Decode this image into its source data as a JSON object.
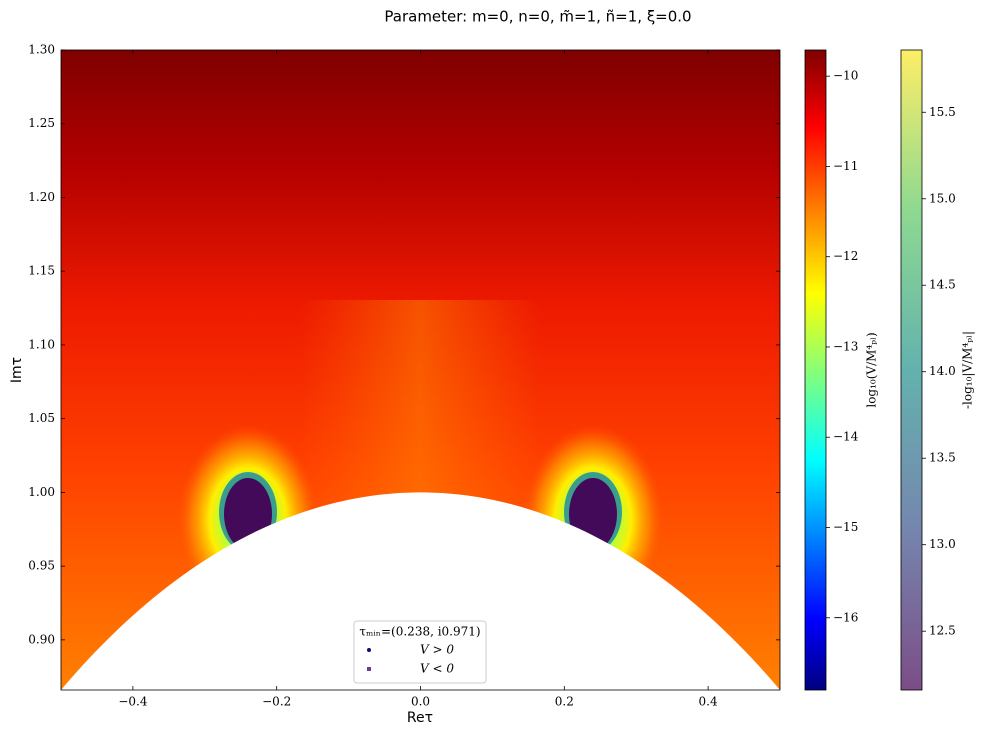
{
  "chart_data": {
    "type": "heatmap",
    "title": "Parameter: m=0, n=0, m̃=1, ñ=1, ξ=0.0",
    "xlabel": "Reτ",
    "ylabel": "Imτ",
    "xlim": [
      -0.5,
      0.5
    ],
    "ylim": [
      0.866,
      1.3
    ],
    "xticks": [
      {
        "value": -0.4,
        "label": "−0.4"
      },
      {
        "value": -0.2,
        "label": "−0.2"
      },
      {
        "value": 0,
        "label": "0.0"
      },
      {
        "value": 0.2,
        "label": "0.2"
      },
      {
        "value": 0.4,
        "label": "0.4"
      }
    ],
    "yticks": [
      {
        "value": 0.9,
        "label": "0.90"
      },
      {
        "value": 0.95,
        "label": "0.95"
      },
      {
        "value": 1,
        "label": "1.00"
      },
      {
        "value": 1.05,
        "label": "1.05"
      },
      {
        "value": 1.1,
        "label": "1.10"
      },
      {
        "value": 1.15,
        "label": "1.15"
      },
      {
        "value": 1.2,
        "label": "1.20"
      },
      {
        "value": 1.25,
        "label": "1.25"
      },
      {
        "value": 1.3,
        "label": "1.30"
      }
    ],
    "colorbars": [
      {
        "label": "log₁₀(V/M⁴ₚₗ)",
        "cmap": "jet",
        "lim": [
          -16.8,
          -9.71
        ],
        "ticks": [
          {
            "value": -10,
            "label": "−10"
          },
          {
            "value": -11,
            "label": "−11"
          },
          {
            "value": -12,
            "label": "−12"
          },
          {
            "value": -13,
            "label": "−13"
          },
          {
            "value": -14,
            "label": "−14"
          },
          {
            "value": -15,
            "label": "−15"
          },
          {
            "value": -16,
            "label": "−16"
          }
        ]
      },
      {
        "label": "-log₁₀|V/M⁴ₚₗ|",
        "cmap": "viridis",
        "lim": [
          12.16,
          15.86
        ],
        "ticks": [
          12.5,
          {
            "value": 13,
            "label": "13.0"
          },
          13.5,
          {
            "value": 14,
            "label": "14.0"
          },
          14.5,
          {
            "value": 15,
            "label": "15.0"
          },
          15.5
        ]
      }
    ],
    "legend": {
      "title": "τₘᵢₙ=(0.238, i0.971)",
      "loc": "lower center",
      "entries": [
        {
          "label": "V > 0",
          "color": "#0b0b7a",
          "marker": "circle"
        },
        {
          "label": "V < 0",
          "color": "#6a3d9a",
          "marker": "square"
        }
      ]
    }
  }
}
